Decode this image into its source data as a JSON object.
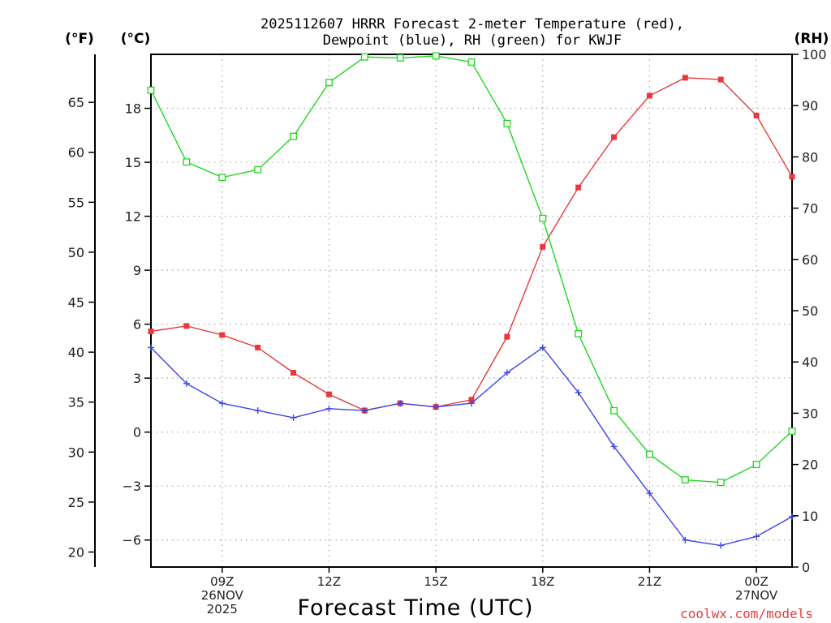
{
  "chart_data": {
    "type": "line",
    "title_line1": "2025112607 HRRR Forecast 2-meter Temperature (red),",
    "title_line2": "Dewpoint (blue), RH (green) for KWJF",
    "xlabel": "Forecast Time (UTC)",
    "credit": "coolwx.com/models",
    "units": {
      "fahrenheit": "(°F)",
      "celsius": "(°C)",
      "rh": "(RH)"
    },
    "x": [
      7,
      8,
      9,
      10,
      11,
      12,
      13,
      14,
      15,
      16,
      17,
      18,
      19,
      20,
      21,
      22,
      23,
      24,
      25
    ],
    "xlim": [
      7,
      25
    ],
    "x_ticks": [
      {
        "x": 9,
        "lines": [
          "09Z",
          "26NOV",
          "2025"
        ]
      },
      {
        "x": 12,
        "lines": [
          "12Z"
        ]
      },
      {
        "x": 15,
        "lines": [
          "15Z"
        ]
      },
      {
        "x": 18,
        "lines": [
          "18Z"
        ]
      },
      {
        "x": 21,
        "lines": [
          "21Z"
        ]
      },
      {
        "x": 24,
        "lines": [
          "00Z",
          "27NOV"
        ]
      }
    ],
    "ylim_c": [
      -7.5,
      21
    ],
    "yticks_c": [
      -6,
      -3,
      0,
      3,
      6,
      9,
      12,
      15,
      18
    ],
    "ylim_f": [
      18.5,
      69.8
    ],
    "yticks_f": [
      20,
      25,
      30,
      35,
      40,
      45,
      50,
      55,
      60,
      65
    ],
    "ylim_rh": [
      0,
      100
    ],
    "yticks_rh": [
      0,
      10,
      20,
      30,
      40,
      50,
      60,
      70,
      80,
      90,
      100
    ],
    "series": [
      {
        "name": "Temperature",
        "color": "#e8383b",
        "marker": "filled-square",
        "axis": "celsius",
        "values": [
          5.6,
          5.9,
          5.4,
          4.7,
          3.3,
          2.1,
          1.2,
          1.6,
          1.4,
          1.8,
          5.3,
          10.3,
          13.6,
          16.4,
          18.7,
          19.7,
          19.6,
          17.6,
          14.2
        ]
      },
      {
        "name": "Dewpoint",
        "color": "#3a46e6",
        "marker": "plus",
        "axis": "celsius",
        "values": [
          4.7,
          2.7,
          1.6,
          1.2,
          0.8,
          1.3,
          1.2,
          1.6,
          1.4,
          1.6,
          3.3,
          4.7,
          2.2,
          -0.8,
          -3.4,
          -6.0,
          -6.3,
          -5.8,
          -4.7
        ]
      },
      {
        "name": "RH",
        "color": "#22d622",
        "marker": "open-square",
        "axis": "rh",
        "values": [
          93,
          79,
          76,
          77.5,
          84,
          94.5,
          99.5,
          99.3,
          99.7,
          98.5,
          86.5,
          68,
          45.5,
          30.5,
          22,
          17,
          16.5,
          20,
          26.5
        ]
      }
    ]
  }
}
